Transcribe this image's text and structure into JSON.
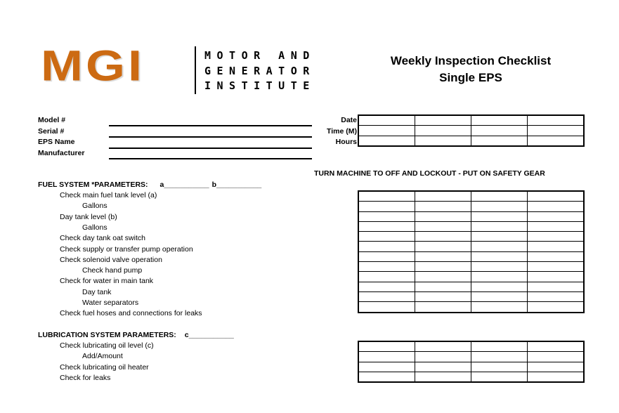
{
  "logo": {
    "letters": "MGI",
    "line1": "MOTOR AND",
    "line2": "GENERATOR",
    "line3": "INSTITUTE",
    "color": "#cc6a12"
  },
  "title": {
    "line1": "Weekly Inspection Checklist",
    "line2": "Single EPS"
  },
  "info_fields": [
    "Model #",
    "Serial #",
    "EPS Name",
    "Manufacturer"
  ],
  "header_table_labels": [
    "Date",
    "Time (M)",
    "Hours"
  ],
  "safety_notice": "TURN MACHINE TO OFF AND LOCKOUT - PUT ON SAFETY GEAR",
  "fuel": {
    "heading": "FUEL SYSTEM *PARAMETERS:",
    "param_a": "a___________",
    "param_b": "b___________",
    "items": [
      {
        "text": "Check main fuel tank level (a)",
        "indent": 1
      },
      {
        "text": "Gallons",
        "indent": 2
      },
      {
        "text": "Day tank level (b)",
        "indent": 1
      },
      {
        "text": "Gallons",
        "indent": 2
      },
      {
        "text": "Check day tank oat switch",
        "indent": 1
      },
      {
        "text": "Check supply or transfer pump operation",
        "indent": 1
      },
      {
        "text": "Check solenoid valve operation",
        "indent": 1
      },
      {
        "text": "Check hand pump",
        "indent": 2
      },
      {
        "text": "Check for water in main tank",
        "indent": 1
      },
      {
        "text": "Day tank",
        "indent": 2
      },
      {
        "text": "Water separators",
        "indent": 2
      },
      {
        "text": "Check fuel hoses and connections for leaks",
        "indent": 1
      }
    ]
  },
  "lube": {
    "heading": "LUBRICATION SYSTEM PARAMETERS:",
    "param_c": "c___________",
    "items": [
      {
        "text": "Check lubricating oil level (c)",
        "indent": 1
      },
      {
        "text": "Add/Amount",
        "indent": 2
      },
      {
        "text": "Check lubricating oil heater",
        "indent": 1
      },
      {
        "text": "Check for leaks",
        "indent": 1
      }
    ]
  }
}
